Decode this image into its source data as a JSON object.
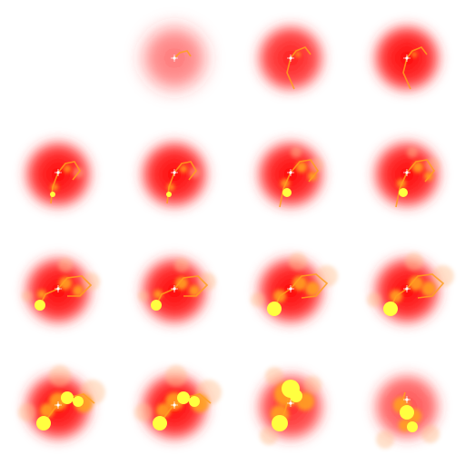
{
  "sprite_sheet": {
    "columns": 4,
    "rows": 4,
    "frames": [
      {
        "index": 0,
        "empty": true
      },
      {
        "index": 1,
        "glow_opacity": 0.55,
        "glow_blur": 9,
        "stage": 0
      },
      {
        "index": 2,
        "glow_opacity": 0.9,
        "glow_blur": 6,
        "stage": 1
      },
      {
        "index": 3,
        "glow_opacity": 1.0,
        "glow_blur": 6,
        "stage": 1
      },
      {
        "index": 4,
        "glow_opacity": 1.0,
        "glow_blur": 6,
        "stage": 2
      },
      {
        "index": 5,
        "glow_opacity": 1.0,
        "glow_blur": 6,
        "stage": 2
      },
      {
        "index": 6,
        "glow_opacity": 1.0,
        "glow_blur": 6,
        "stage": 3
      },
      {
        "index": 7,
        "glow_opacity": 1.0,
        "glow_blur": 6,
        "stage": 3
      },
      {
        "index": 8,
        "glow_opacity": 1.0,
        "glow_blur": 6,
        "stage": 4
      },
      {
        "index": 9,
        "glow_opacity": 1.0,
        "glow_blur": 6,
        "stage": 4
      },
      {
        "index": 10,
        "glow_opacity": 1.0,
        "glow_blur": 6,
        "stage": 5
      },
      {
        "index": 11,
        "glow_opacity": 1.0,
        "glow_blur": 6,
        "stage": 5
      },
      {
        "index": 12,
        "glow_opacity": 1.0,
        "glow_blur": 6,
        "stage": 6
      },
      {
        "index": 13,
        "glow_opacity": 1.0,
        "glow_blur": 6,
        "stage": 6
      },
      {
        "index": 14,
        "glow_opacity": 0.85,
        "glow_blur": 6,
        "stage": 7
      },
      {
        "index": 15,
        "glow_opacity": 0.7,
        "glow_blur": 6,
        "stage": 8
      }
    ]
  },
  "colors": {
    "background": "#ffffff",
    "glow_core": "#ff0000",
    "glow_edge": "#ff3030",
    "fire_yellow": "#ffff40",
    "fire_orange": "#ffa020",
    "smoke": "#ffc090",
    "spark_white": "#ffffff"
  }
}
